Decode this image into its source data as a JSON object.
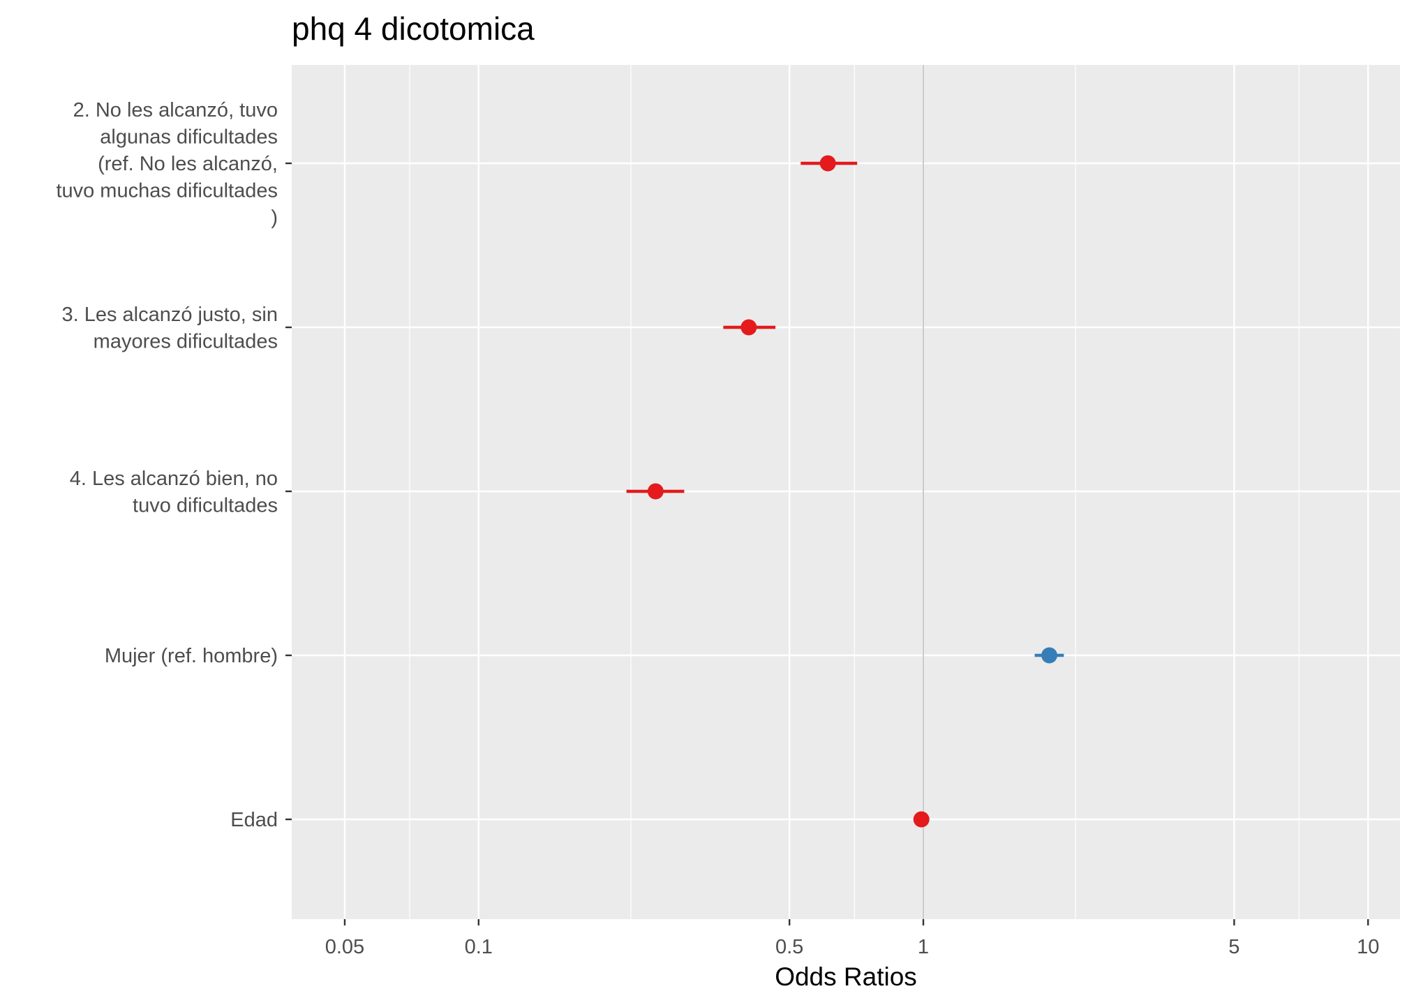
{
  "chart_data": {
    "type": "forest",
    "title": "phq 4 dicotomica",
    "xlabel": "Odds Ratios",
    "x_scale": "log10",
    "xlim": [
      0.038,
      11.8
    ],
    "x_ticks": [
      {
        "value": 0.05,
        "label": "0.05"
      },
      {
        "value": 0.1,
        "label": "0.1"
      },
      {
        "value": 0.5,
        "label": "0.5"
      },
      {
        "value": 1,
        "label": "1"
      },
      {
        "value": 5,
        "label": "5"
      },
      {
        "value": 10,
        "label": "10"
      }
    ],
    "x_minor_ticks": [
      0.07,
      0.22,
      0.7,
      2.2,
      7
    ],
    "reference_line": 1,
    "colors": {
      "below_one": "#e41a1c",
      "above_one": "#377eb8",
      "panel": "#ebebeb",
      "grid": "#ffffff",
      "reference": "#a6a6a6"
    },
    "terms": [
      {
        "lines": [
          "2. No les alcanzó, tuvo",
          "algunas dificultades",
          "(ref. No les alcanzó,",
          "tuvo muchas dificultades",
          ")"
        ],
        "estimate": 0.61,
        "ci_low": 0.53,
        "ci_high": 0.71
      },
      {
        "lines": [
          "3. Les alcanzó justo, sin",
          "mayores dificultades"
        ],
        "estimate": 0.405,
        "ci_low": 0.355,
        "ci_high": 0.465
      },
      {
        "lines": [
          "4. Les alcanzó bien, no",
          "tuvo dificultades"
        ],
        "estimate": 0.25,
        "ci_low": 0.215,
        "ci_high": 0.29
      },
      {
        "lines": [
          "Mujer (ref. hombre)"
        ],
        "estimate": 1.92,
        "ci_low": 1.78,
        "ci_high": 2.07
      },
      {
        "lines": [
          "Edad"
        ],
        "estimate": 0.99,
        "ci_low": 0.985,
        "ci_high": 0.995
      }
    ]
  }
}
